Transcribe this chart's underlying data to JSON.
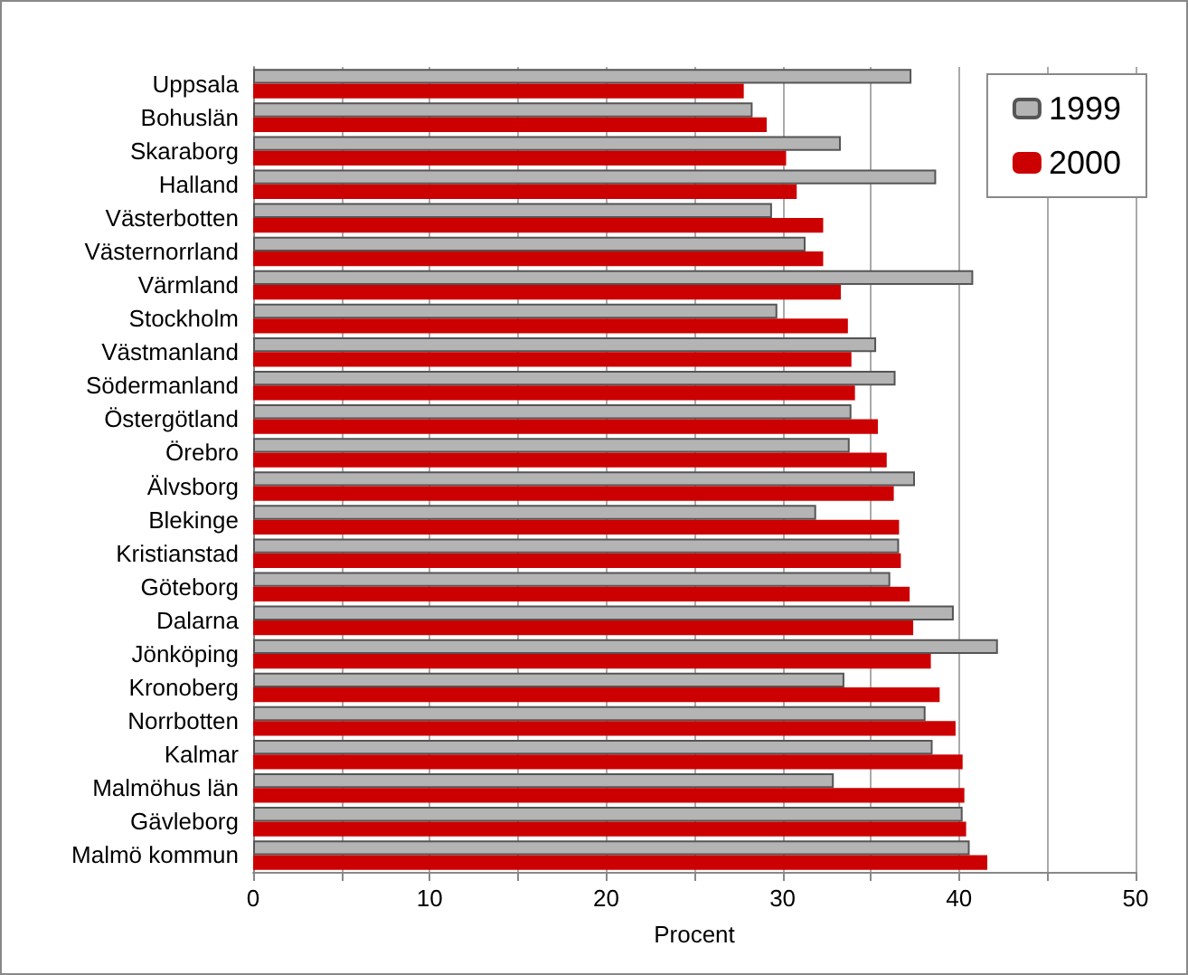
{
  "chart_data": {
    "type": "bar",
    "orientation": "horizontal",
    "xlabel": "Procent",
    "categories": [
      "Uppsala",
      "Bohuslän",
      "Skaraborg",
      "Halland",
      "Västerbotten",
      "Västernorrland",
      "Värmland",
      "Stockholm",
      "Västmanland",
      "Södermanland",
      "Östergötland",
      "Örebro",
      "Älvsborg",
      "Blekinge",
      "Kristianstad",
      "Göteborg",
      "Dalarna",
      "Jönköping",
      "Kronoberg",
      "Norrbotten",
      "Kalmar",
      "Malmöhus län",
      "Gävleborg",
      "Malmö kommun"
    ],
    "series": [
      {
        "name": "1999",
        "color": "#b4b4b4",
        "values": [
          37.3,
          28.3,
          33.3,
          38.7,
          29.4,
          31.3,
          40.8,
          29.7,
          35.3,
          36.4,
          33.9,
          33.8,
          37.5,
          31.9,
          36.6,
          36.1,
          39.7,
          42.2,
          33.5,
          38.1,
          38.5,
          32.9,
          40.2,
          40.6
        ]
      },
      {
        "name": "2000",
        "color": "#cc0000",
        "values": [
          27.8,
          29.1,
          30.2,
          30.8,
          32.3,
          32.3,
          33.3,
          33.7,
          33.9,
          34.1,
          35.4,
          35.9,
          36.3,
          36.6,
          36.7,
          37.2,
          37.4,
          38.4,
          38.9,
          39.8,
          40.2,
          40.3,
          40.4,
          41.6
        ]
      }
    ],
    "xlim": [
      0,
      50
    ],
    "xticks": [
      0,
      {
        "value": 5,
        "label": null
      },
      10,
      {
        "value": 15,
        "label": null
      },
      20,
      {
        "value": 25,
        "label": null
      },
      30,
      {
        "value": 35,
        "label": null
      },
      40,
      {
        "value": 45,
        "label": null
      },
      50
    ],
    "grid": "x",
    "legend": "top right"
  }
}
